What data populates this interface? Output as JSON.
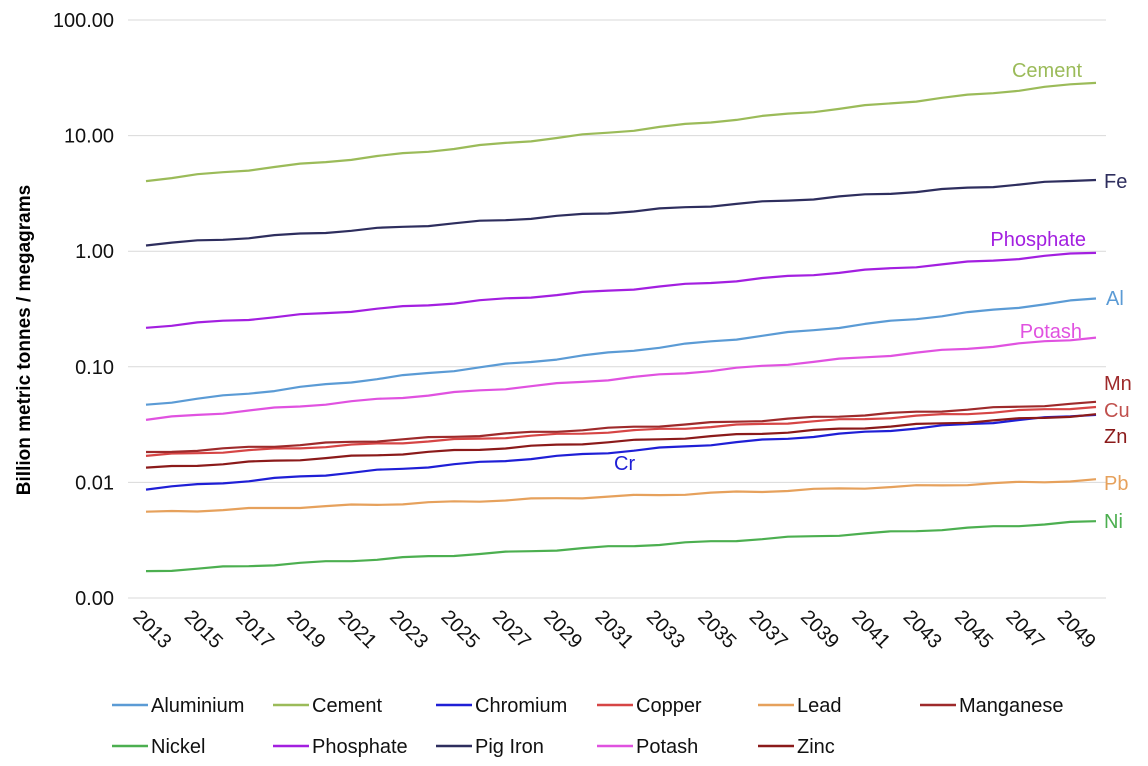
{
  "chart_data": {
    "type": "line",
    "title": "",
    "xlabel": "",
    "ylabel": "Billion metric tonnes / megagrams",
    "y_scale": "log",
    "ylim": [
      0.001,
      100
    ],
    "y_ticks": [
      {
        "value": 0.001,
        "label": "0.00"
      },
      {
        "value": 0.01,
        "label": "0.01"
      },
      {
        "value": 0.1,
        "label": "0.10"
      },
      {
        "value": 1,
        "label": "1.00"
      },
      {
        "value": 10,
        "label": "10.00"
      },
      {
        "value": 100,
        "label": "100.00"
      }
    ],
    "x_range": [
      2013,
      2050
    ],
    "x_ticks": [
      2013,
      2015,
      2017,
      2019,
      2021,
      2023,
      2025,
      2027,
      2029,
      2031,
      2033,
      2035,
      2037,
      2039,
      2041,
      2043,
      2045,
      2047,
      2049
    ],
    "grid": "horizontal",
    "legend_position": "bottom",
    "series": [
      {
        "name": "Aluminium",
        "color": "#5B9BD5",
        "start": 0.047,
        "end": 0.39,
        "label": "Al",
        "label_color": "#5B9BD5"
      },
      {
        "name": "Cement",
        "color": "#9BBB59",
        "start": 4.1,
        "end": 29,
        "label": "Cement",
        "label_color": "#9BBB59"
      },
      {
        "name": "Chromium",
        "color": "#1F1FD6",
        "start": 0.0088,
        "end": 0.039,
        "label": "Cr",
        "label_color": "#1F1FD6"
      },
      {
        "name": "Copper",
        "color": "#D64545",
        "start": 0.017,
        "end": 0.045,
        "label": "Cu",
        "label_color": "#C0504D"
      },
      {
        "name": "Lead",
        "color": "#E6A15C",
        "start": 0.0055,
        "end": 0.0105,
        "label": "Pb",
        "label_color": "#E6A15C"
      },
      {
        "name": "Manganese",
        "color": "#9E2A2B",
        "start": 0.018,
        "end": 0.049,
        "label": "Mn",
        "label_color": "#9E2A2B"
      },
      {
        "name": "Nickel",
        "color": "#4CAF50",
        "start": 0.0017,
        "end": 0.0046,
        "label": "Ni",
        "label_color": "#4CAF50"
      },
      {
        "name": "Phosphate",
        "color": "#A31FE0",
        "start": 0.22,
        "end": 0.98,
        "label": "Phosphate",
        "label_color": "#A31FE0"
      },
      {
        "name": "Pig Iron",
        "color": "#2E2E5E",
        "start": 1.14,
        "end": 4.2,
        "label": "Fe",
        "label_color": "#2E2E5E"
      },
      {
        "name": "Potash",
        "color": "#E052E0",
        "start": 0.035,
        "end": 0.18,
        "label": "Potash",
        "label_color": "#E052E0"
      },
      {
        "name": "Zinc",
        "color": "#8B1A1A",
        "start": 0.0133,
        "end": 0.0385,
        "label": "Zn",
        "label_color": "#8B1A1A"
      }
    ]
  }
}
